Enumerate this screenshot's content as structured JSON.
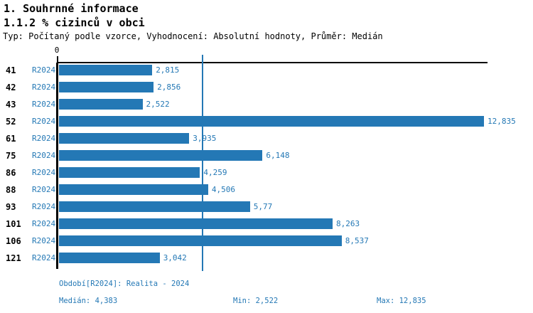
{
  "header": {
    "title": "1. Souhrnné informace",
    "subtitle": "1.1.2 % cizinců v obci",
    "meta": "Typ: Počítaný podle vzorce, Vyhodnocení: Absolutní hodnoty, Průměr: Medián"
  },
  "chart_data": {
    "type": "bar",
    "orientation": "horizontal",
    "title": "1.1.2 % cizinců v obci",
    "categories": [
      "41",
      "42",
      "43",
      "52",
      "61",
      "75",
      "86",
      "88",
      "93",
      "101",
      "106",
      "121"
    ],
    "series": [
      {
        "name": "R2024",
        "values": [
          2.815,
          2.856,
          2.522,
          12.835,
          3.935,
          6.148,
          4.259,
          4.506,
          5.77,
          8.263,
          8.537,
          3.042
        ]
      }
    ],
    "value_labels": [
      "2,815",
      "2,856",
      "2,522",
      "12,835",
      "3,935",
      "6,148",
      "4,259",
      "4,506",
      "5,77",
      "8,263",
      "8,537",
      "3,042"
    ],
    "period_label": "R2024",
    "axis": {
      "zero_label": "0",
      "xlim": [
        0,
        12.835
      ],
      "grid": false,
      "median_gridline": 4.383
    },
    "legend_position": "none",
    "bar_color": "#2478b5",
    "median": 4.383,
    "min": 2.522,
    "max": 12.835
  },
  "footer": {
    "period": "Období[R2024]: Realita - 2024",
    "median": "Medián: 4,383",
    "min": "Min: 2,522",
    "max": "Max: 12,835"
  },
  "colors": {
    "accent": "#2478b5",
    "text": "#000000",
    "background": "#ffffff"
  }
}
